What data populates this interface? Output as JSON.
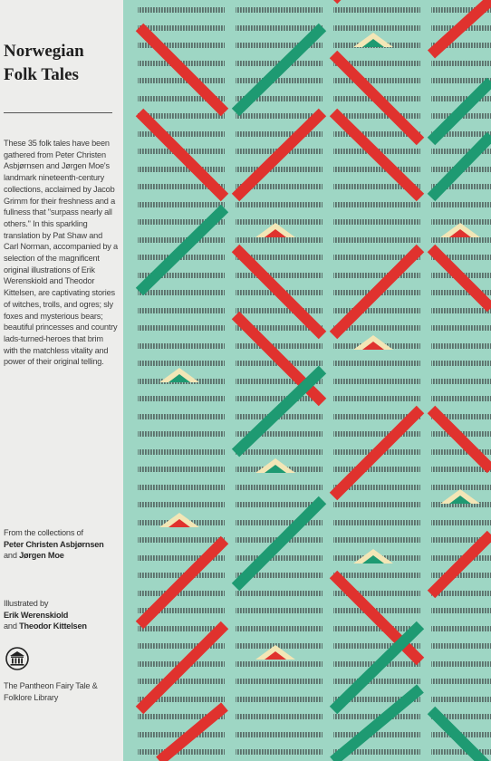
{
  "cover": {
    "title": "Norwegian\nFolk Tales",
    "blurb": "These 35 folk tales have been gathered from Peter Christen Asbjørnsen and Jørgen Moe's landmark nineteenth-century collections, acclaimed by Jacob Grimm for their freshness and a fullness that \"surpass nearly all others.\" In this sparkling translation by Pat Shaw and Carl Norman, accompanied by a selection of the magnificent original illustrations of Erik Werenskiold and Theodor Kittelsen, are captivating stories of witches, trolls, and ogres; sly foxes and mysterious bears; beautiful princesses and country lads-turned-heroes that brim with the matchless vitality and power of their original telling.",
    "from_label": "From the collections of",
    "author1": "Peter Christen Asbjørnsen",
    "and1": "and",
    "author2": "Jørgen Moe",
    "illustrated_label": "Illustrated by",
    "illustrator1": "Erik Werenskiold",
    "and2": "and",
    "illustrator2": "Theodor Kittelsen",
    "logo_icon": "pantheon-temple-icon",
    "series": "The Pantheon Fairy Tale & Folklore Library"
  },
  "colors": {
    "background": "#9ed6c4",
    "panel": "#ededeb",
    "red": "#e0322e",
    "green": "#1e9a72",
    "cream": "#f3e6b6",
    "dash": "#5a6f6a"
  }
}
